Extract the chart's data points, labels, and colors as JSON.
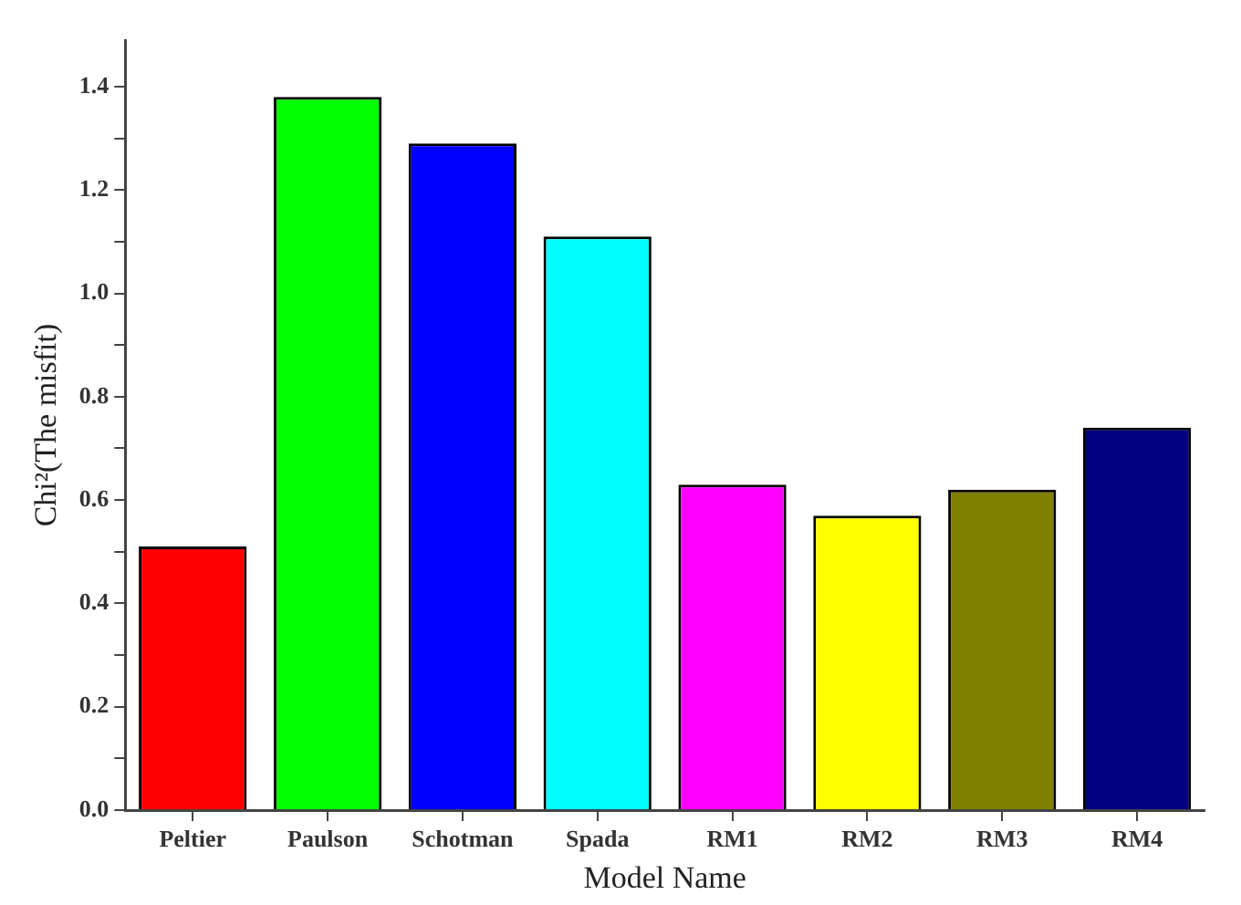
{
  "chart_data": {
    "type": "bar",
    "xlabel": "Model Name",
    "ylabel": "Chi²(The misfit)",
    "categories": [
      "Peltier",
      "Paulson",
      "Schotman",
      "Spada",
      "RM1",
      "RM2",
      "RM3",
      "RM4"
    ],
    "values": [
      0.51,
      1.38,
      1.29,
      1.11,
      0.63,
      0.57,
      0.62,
      0.74
    ],
    "colors": [
      "#ff0000",
      "#00ff00",
      "#0000ff",
      "#00ffff",
      "#ff00ff",
      "#ffff00",
      "#808000",
      "#000080"
    ],
    "ylim": [
      0,
      1.49
    ],
    "yticks": [
      {
        "value": 0,
        "label": "0.0"
      },
      {
        "value": 0.1,
        "label": null
      },
      {
        "value": 0.2,
        "label": "0.2"
      },
      {
        "value": 0.3,
        "label": null
      },
      {
        "value": 0.4,
        "label": "0.4"
      },
      {
        "value": 0.5,
        "label": null
      },
      {
        "value": 0.6,
        "label": "0.6"
      },
      {
        "value": 0.7,
        "label": null
      },
      {
        "value": 0.8,
        "label": "0.8"
      },
      {
        "value": 0.9,
        "label": null
      },
      {
        "value": 1,
        "label": "1.0"
      },
      {
        "value": 1.1,
        "label": null
      },
      {
        "value": 1.2,
        "label": "1.2"
      },
      {
        "value": 1.3,
        "label": null
      },
      {
        "value": 1.4,
        "label": "1.4"
      }
    ],
    "grid": false,
    "legend": false
  }
}
